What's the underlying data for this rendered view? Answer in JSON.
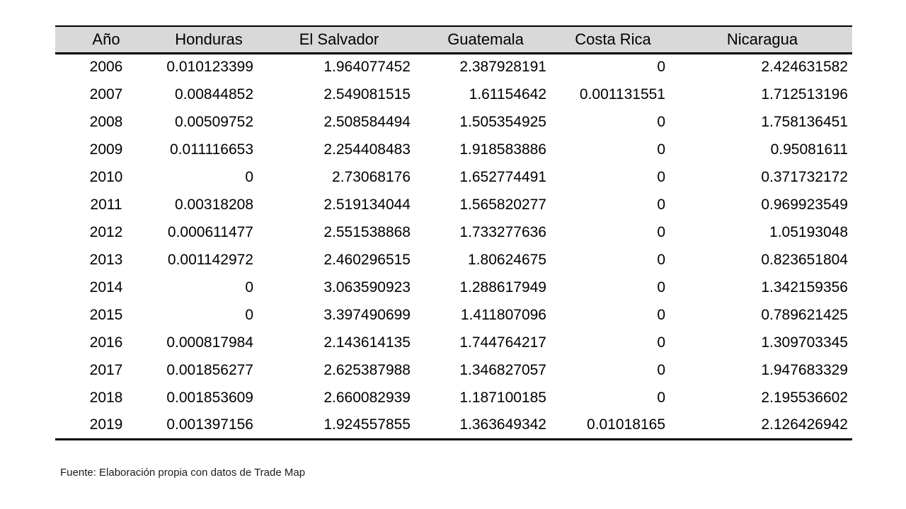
{
  "colors": {
    "page_bg": "#ffffff",
    "header_bg": "#d9d9d9",
    "border": "#000000",
    "text": "#000000"
  },
  "table": {
    "columns": [
      "Año",
      "Honduras",
      "El Salvador",
      "Guatemala",
      "Costa Rica",
      "Nicaragua"
    ],
    "rows": [
      [
        "2006",
        "0.010123399",
        "1.964077452",
        "2.387928191",
        "0",
        "2.424631582"
      ],
      [
        "2007",
        "0.00844852",
        "2.549081515",
        "1.61154642",
        "0.001131551",
        "1.712513196"
      ],
      [
        "2008",
        "0.00509752",
        "2.508584494",
        "1.505354925",
        "0",
        "1.758136451"
      ],
      [
        "2009",
        "0.011116653",
        "2.254408483",
        "1.918583886",
        "0",
        "0.95081611"
      ],
      [
        "2010",
        "0",
        "2.73068176",
        "1.652774491",
        "0",
        "0.371732172"
      ],
      [
        "2011",
        "0.00318208",
        "2.519134044",
        "1.565820277",
        "0",
        "0.969923549"
      ],
      [
        "2012",
        "0.000611477",
        "2.551538868",
        "1.733277636",
        "0",
        "1.05193048"
      ],
      [
        "2013",
        "0.001142972",
        "2.460296515",
        "1.80624675",
        "0",
        "0.823651804"
      ],
      [
        "2014",
        "0",
        "3.063590923",
        "1.288617949",
        "0",
        "1.342159356"
      ],
      [
        "2015",
        "0",
        "3.397490699",
        "1.411807096",
        "0",
        "0.789621425"
      ],
      [
        "2016",
        "0.000817984",
        "2.143614135",
        "1.744764217",
        "0",
        "1.309703345"
      ],
      [
        "2017",
        "0.001856277",
        "2.625387988",
        "1.346827057",
        "0",
        "1.947683329"
      ],
      [
        "2018",
        "0.001853609",
        "2.660082939",
        "1.187100185",
        "0",
        "2.195536602"
      ],
      [
        "2019",
        "0.001397156",
        "1.924557855",
        "1.363649342",
        "0.01018165",
        "2.126426942"
      ]
    ]
  },
  "footer": {
    "source_note": "Fuente: Elaboración propia con datos de Trade Map"
  },
  "chart_data": {
    "type": "table",
    "title": "",
    "xlabel": "Año",
    "categories": [
      2006,
      2007,
      2008,
      2009,
      2010,
      2011,
      2012,
      2013,
      2014,
      2015,
      2016,
      2017,
      2018,
      2019
    ],
    "series": [
      {
        "name": "Honduras",
        "values": [
          0.010123399,
          0.00844852,
          0.00509752,
          0.011116653,
          0,
          0.00318208,
          0.000611477,
          0.001142972,
          0,
          0,
          0.000817984,
          0.001856277,
          0.001853609,
          0.001397156
        ]
      },
      {
        "name": "El Salvador",
        "values": [
          1.964077452,
          2.549081515,
          2.508584494,
          2.254408483,
          2.73068176,
          2.519134044,
          2.551538868,
          2.460296515,
          3.063590923,
          3.397490699,
          2.143614135,
          2.625387988,
          2.660082939,
          1.924557855
        ]
      },
      {
        "name": "Guatemala",
        "values": [
          2.387928191,
          1.61154642,
          1.505354925,
          1.918583886,
          1.652774491,
          1.565820277,
          1.733277636,
          1.80624675,
          1.288617949,
          1.411807096,
          1.744764217,
          1.346827057,
          1.187100185,
          1.363649342
        ]
      },
      {
        "name": "Costa Rica",
        "values": [
          0,
          0.001131551,
          0,
          0,
          0,
          0,
          0,
          0,
          0,
          0,
          0,
          0,
          0,
          0.01018165
        ]
      },
      {
        "name": "Nicaragua",
        "values": [
          2.424631582,
          1.712513196,
          1.758136451,
          0.95081611,
          0.371732172,
          0.969923549,
          1.05193048,
          0.823651804,
          1.342159356,
          0.789621425,
          1.309703345,
          1.947683329,
          2.195536602,
          2.126426942
        ]
      }
    ],
    "source_note": "Fuente: Elaboración propia con datos de Trade Map"
  }
}
